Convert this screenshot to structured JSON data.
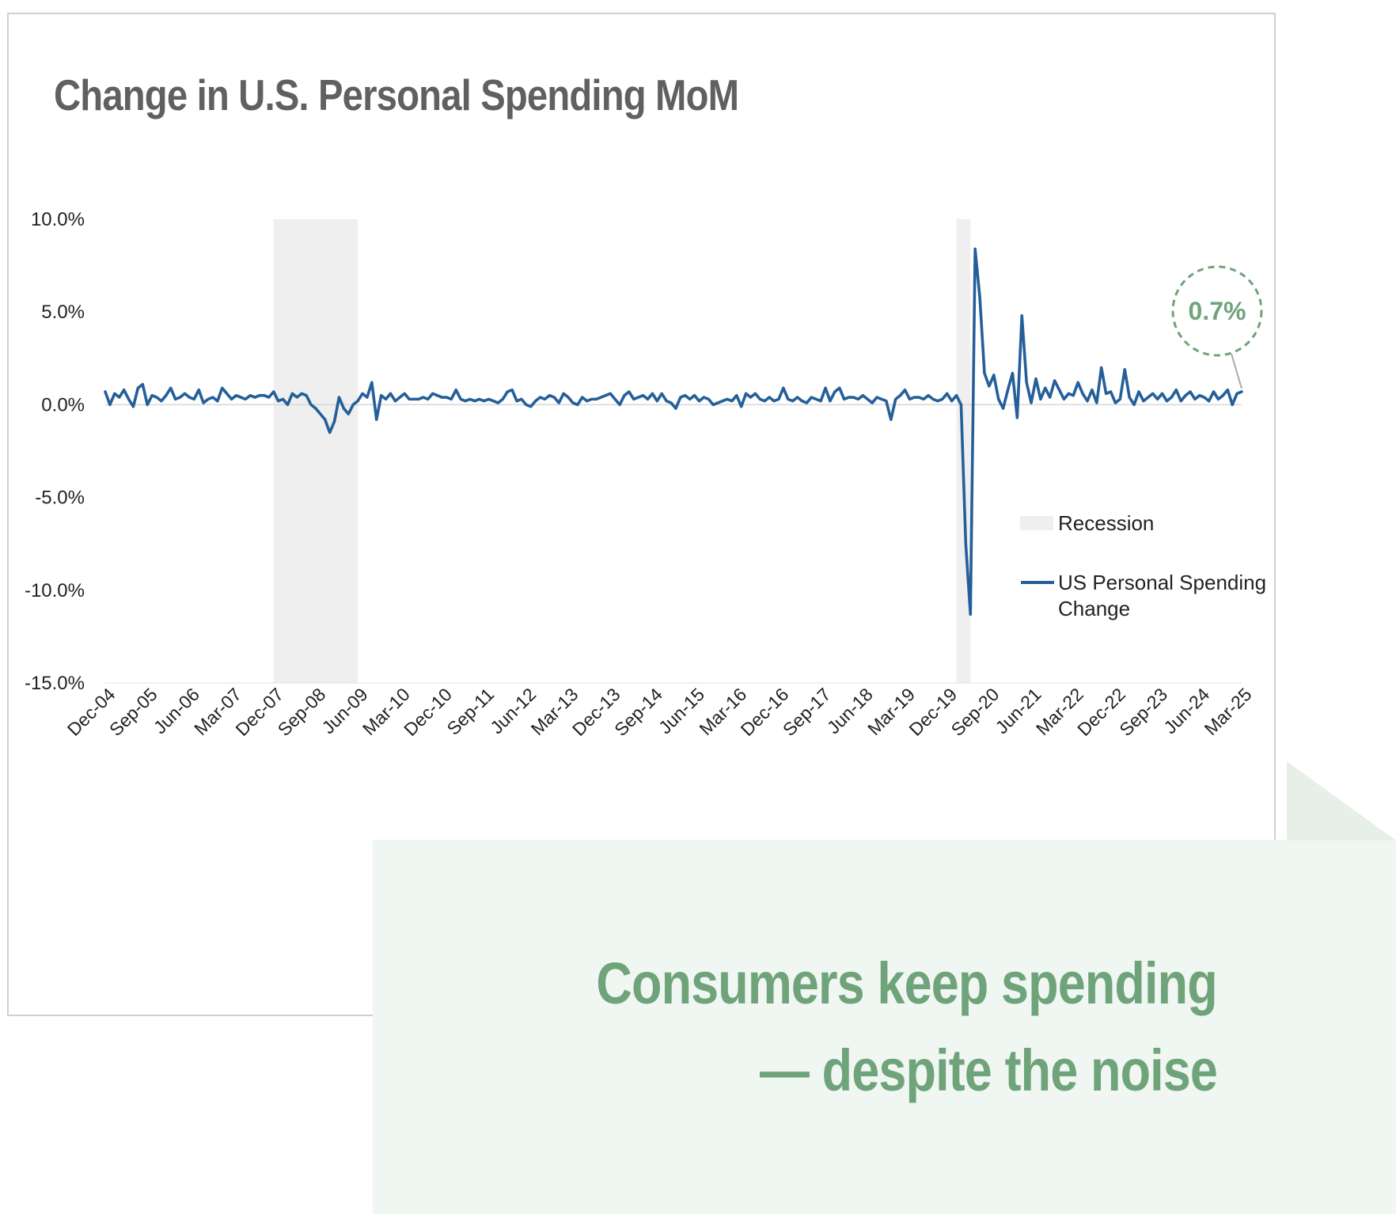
{
  "colors": {
    "title": "#5f6062",
    "line": "#255f99",
    "recession_fill": "#efefef",
    "accent_green": "#6fa37a",
    "panel_bg": "#f0f6f2",
    "fold_bg": "#e6efe8",
    "axis_text": "#222222"
  },
  "chart_data": {
    "type": "line",
    "title": "Change in U.S. Personal Spending MoM",
    "xlabel": "",
    "ylabel": "",
    "ylim": [
      -15.0,
      10.0
    ],
    "y_ticks": [
      {
        "value": 10,
        "label": "10.0%"
      },
      {
        "value": 5,
        "label": "5.0%"
      },
      {
        "value": 0,
        "label": "0.0%"
      },
      {
        "value": -5,
        "label": "-5.0%"
      },
      {
        "value": -10,
        "label": "-10.0%"
      },
      {
        "value": -15,
        "label": "-15.0%"
      }
    ],
    "x_ticks": [
      {
        "index": 0,
        "label": "Dec-04"
      },
      {
        "index": 9,
        "label": "Sep-05"
      },
      {
        "index": 18,
        "label": "Jun-06"
      },
      {
        "index": 27,
        "label": "Mar-07"
      },
      {
        "index": 36,
        "label": "Dec-07"
      },
      {
        "index": 45,
        "label": "Sep-08"
      },
      {
        "index": 54,
        "label": "Jun-09"
      },
      {
        "index": 63,
        "label": "Mar-10"
      },
      {
        "index": 72,
        "label": "Dec-10"
      },
      {
        "index": 81,
        "label": "Sep-11"
      },
      {
        "index": 90,
        "label": "Jun-12"
      },
      {
        "index": 99,
        "label": "Mar-13"
      },
      {
        "index": 108,
        "label": "Dec-13"
      },
      {
        "index": 117,
        "label": "Sep-14"
      },
      {
        "index": 126,
        "label": "Jun-15"
      },
      {
        "index": 135,
        "label": "Mar-16"
      },
      {
        "index": 144,
        "label": "Dec-16"
      },
      {
        "index": 153,
        "label": "Sep-17"
      },
      {
        "index": 162,
        "label": "Jun-18"
      },
      {
        "index": 171,
        "label": "Mar-19"
      },
      {
        "index": 180,
        "label": "Dec-19"
      },
      {
        "index": 189,
        "label": "Sep-20"
      },
      {
        "index": 198,
        "label": "Jun-21"
      },
      {
        "index": 207,
        "label": "Mar-22"
      },
      {
        "index": 216,
        "label": "Dec-22"
      },
      {
        "index": 225,
        "label": "Sep-23"
      },
      {
        "index": 234,
        "label": "Jun-24"
      },
      {
        "index": 243,
        "label": "Mar-25"
      }
    ],
    "recessions": [
      {
        "start_index": 36,
        "end_index": 54
      },
      {
        "start_index": 182,
        "end_index": 185
      }
    ],
    "series": [
      {
        "name": "US Personal Spending Change",
        "legend_label_lines": [
          "US Personal Spending",
          "Change"
        ],
        "start": "Dec-04",
        "end": "Mar-25",
        "frequency": "monthly",
        "values": [
          0.7,
          0.0,
          0.6,
          0.4,
          0.8,
          0.3,
          -0.1,
          0.9,
          1.1,
          0.0,
          0.5,
          0.4,
          0.2,
          0.5,
          0.9,
          0.3,
          0.4,
          0.6,
          0.4,
          0.3,
          0.8,
          0.1,
          0.3,
          0.4,
          0.2,
          0.9,
          0.6,
          0.3,
          0.5,
          0.4,
          0.3,
          0.5,
          0.4,
          0.5,
          0.5,
          0.4,
          0.7,
          0.2,
          0.3,
          0.0,
          0.6,
          0.4,
          0.6,
          0.5,
          0.0,
          -0.2,
          -0.5,
          -0.8,
          -1.5,
          -0.9,
          0.4,
          -0.2,
          -0.5,
          0.0,
          0.2,
          0.6,
          0.4,
          1.2,
          -0.8,
          0.5,
          0.3,
          0.6,
          0.2,
          0.4,
          0.6,
          0.3,
          0.3,
          0.3,
          0.4,
          0.3,
          0.6,
          0.5,
          0.4,
          0.4,
          0.3,
          0.8,
          0.3,
          0.2,
          0.3,
          0.2,
          0.3,
          0.2,
          0.3,
          0.2,
          0.1,
          0.3,
          0.7,
          0.8,
          0.2,
          0.3,
          0.0,
          -0.1,
          0.2,
          0.4,
          0.3,
          0.5,
          0.4,
          0.1,
          0.6,
          0.4,
          0.1,
          0.0,
          0.4,
          0.2,
          0.3,
          0.3,
          0.4,
          0.5,
          0.6,
          0.3,
          0.0,
          0.5,
          0.7,
          0.3,
          0.4,
          0.5,
          0.3,
          0.6,
          0.2,
          0.6,
          0.2,
          0.1,
          -0.2,
          0.4,
          0.5,
          0.3,
          0.5,
          0.2,
          0.4,
          0.3,
          0.0,
          0.1,
          0.2,
          0.3,
          0.2,
          0.5,
          -0.1,
          0.6,
          0.4,
          0.6,
          0.3,
          0.2,
          0.4,
          0.2,
          0.3,
          0.9,
          0.3,
          0.2,
          0.4,
          0.2,
          0.1,
          0.4,
          0.3,
          0.2,
          0.9,
          0.2,
          0.7,
          0.9,
          0.3,
          0.4,
          0.4,
          0.3,
          0.5,
          0.3,
          0.1,
          0.4,
          0.3,
          0.2,
          -0.8,
          0.3,
          0.5,
          0.8,
          0.3,
          0.4,
          0.4,
          0.3,
          0.5,
          0.3,
          0.2,
          0.3,
          0.6,
          0.2,
          0.5,
          0.0,
          -7.5,
          -11.3,
          8.4,
          5.8,
          1.7,
          1.0,
          1.6,
          0.3,
          -0.2,
          0.8,
          1.7,
          -0.7,
          4.8,
          1.2,
          0.1,
          1.4,
          0.3,
          0.9,
          0.4,
          1.3,
          0.8,
          0.3,
          0.6,
          0.5,
          1.2,
          0.6,
          0.2,
          0.8,
          0.1,
          2.0,
          0.6,
          0.7,
          0.1,
          0.3,
          1.9,
          0.4,
          0.0,
          0.7,
          0.2,
          0.4,
          0.6,
          0.3,
          0.6,
          0.2,
          0.4,
          0.8,
          0.2,
          0.5,
          0.7,
          0.3,
          0.5,
          0.4,
          0.2,
          0.7,
          0.3,
          0.5,
          0.8,
          0.0,
          0.6,
          0.7
        ]
      }
    ],
    "legend": {
      "placement": "right",
      "recession_label": "Recession"
    },
    "callout": {
      "label": "0.7%",
      "value": 0.7,
      "point_index": 243
    }
  },
  "tagline": {
    "line1": "Consumers keep spending",
    "line2": "— despite the noise"
  }
}
